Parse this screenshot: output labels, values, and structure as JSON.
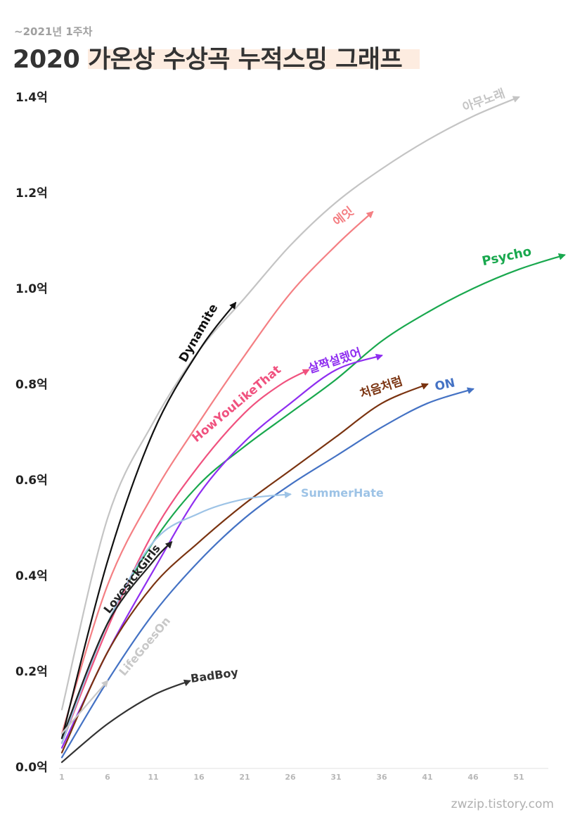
{
  "subtitle": "~2021년 1주차",
  "title": "2020 가온상 수상곡 누적스밍 그래프",
  "watermark": "zwzip.tistory.com",
  "chart_data": {
    "type": "line",
    "title": "2020 가온상 수상곡 누적스밍 그래프",
    "subtitle": "~2021년 1주차",
    "xlabel": "",
    "ylabel": "",
    "xlim": [
      1,
      55
    ],
    "ylim": [
      0,
      1.4
    ],
    "x_ticks": [
      1,
      6,
      11,
      16,
      21,
      26,
      31,
      36,
      41,
      46,
      51
    ],
    "y_ticks": [
      0,
      0.2,
      0.4,
      0.6,
      0.8,
      1.0,
      1.2,
      1.4
    ],
    "y_tick_labels": [
      "0.0억",
      "0.2억",
      "0.4억",
      "0.6억",
      "0.8억",
      "1.0억",
      "1.2억",
      "1.4억"
    ],
    "grid": false,
    "legend": "none",
    "series": [
      {
        "name": "아무노래",
        "color": "#c4c4c4",
        "label_font": 17,
        "label_rot": -20,
        "x": [
          1,
          6,
          11,
          16,
          21,
          26,
          31,
          36,
          41,
          46,
          51
        ],
        "y": [
          0.12,
          0.52,
          0.72,
          0.87,
          0.98,
          1.09,
          1.18,
          1.25,
          1.31,
          1.36,
          1.4
        ]
      },
      {
        "name": "에잇",
        "color": "#f47f83",
        "label_font": 17,
        "label_rot": -38,
        "x": [
          1,
          6,
          11,
          16,
          21,
          26,
          31,
          35
        ],
        "y": [
          0.07,
          0.38,
          0.57,
          0.72,
          0.86,
          0.99,
          1.09,
          1.16
        ]
      },
      {
        "name": "Psycho",
        "color": "#19a84e",
        "label_font": 18,
        "label_rot": -12,
        "x": [
          1,
          6,
          11,
          16,
          21,
          26,
          31,
          36,
          41,
          46,
          51,
          56
        ],
        "y": [
          0.05,
          0.3,
          0.47,
          0.59,
          0.67,
          0.74,
          0.81,
          0.89,
          0.95,
          1.0,
          1.04,
          1.07
        ]
      },
      {
        "name": "Dynamite",
        "color": "#111111",
        "label_font": 17,
        "label_rot": -60,
        "x": [
          1,
          6,
          11,
          16,
          20
        ],
        "y": [
          0.06,
          0.43,
          0.7,
          0.87,
          0.97
        ]
      },
      {
        "name": "HowYouLikeThat",
        "color": "#f0527f",
        "label_font": 17,
        "label_rot": -40,
        "x": [
          1,
          6,
          11,
          16,
          21,
          25,
          28
        ],
        "y": [
          0.05,
          0.29,
          0.49,
          0.63,
          0.74,
          0.8,
          0.83
        ]
      },
      {
        "name": "살짝설렜어",
        "color": "#8f2ef0",
        "label_font": 17,
        "label_rot": -18,
        "x": [
          1,
          6,
          11,
          16,
          21,
          26,
          31,
          36
        ],
        "y": [
          0.04,
          0.24,
          0.41,
          0.57,
          0.68,
          0.76,
          0.83,
          0.86
        ]
      },
      {
        "name": "처음처럼",
        "color": "#7a3310",
        "label_font": 17,
        "label_rot": -18,
        "x": [
          1,
          6,
          11,
          16,
          21,
          26,
          31,
          36,
          41
        ],
        "y": [
          0.03,
          0.24,
          0.38,
          0.47,
          0.55,
          0.62,
          0.69,
          0.76,
          0.8
        ]
      },
      {
        "name": "ON",
        "color": "#4472c4",
        "label_font": 17,
        "label_rot": -12,
        "x": [
          1,
          6,
          11,
          16,
          21,
          26,
          31,
          36,
          41,
          46
        ],
        "y": [
          0.02,
          0.18,
          0.32,
          0.43,
          0.52,
          0.59,
          0.65,
          0.71,
          0.76,
          0.79
        ]
      },
      {
        "name": "SummerHate",
        "color": "#9dc3e6",
        "label_font": 16,
        "label_rot": 0,
        "x": [
          1,
          6,
          11,
          16,
          21,
          26
        ],
        "y": [
          0.05,
          0.3,
          0.47,
          0.53,
          0.56,
          0.57
        ]
      },
      {
        "name": "LovesickGirls",
        "color": "#222222",
        "label_font": 16,
        "label_rot": -52,
        "x": [
          1,
          6,
          11,
          13
        ],
        "y": [
          0.06,
          0.3,
          0.43,
          0.47
        ]
      },
      {
        "name": "LifeGoesOn",
        "color": "#c8c8c8",
        "label_font": 16,
        "label_rot": -50,
        "x": [
          1,
          6
        ],
        "y": [
          0.07,
          0.18
        ]
      },
      {
        "name": "BadBoy",
        "color": "#333333",
        "label_font": 16,
        "label_rot": -8,
        "x": [
          1,
          6,
          11,
          15
        ],
        "y": [
          0.01,
          0.09,
          0.15,
          0.18
        ]
      }
    ]
  }
}
